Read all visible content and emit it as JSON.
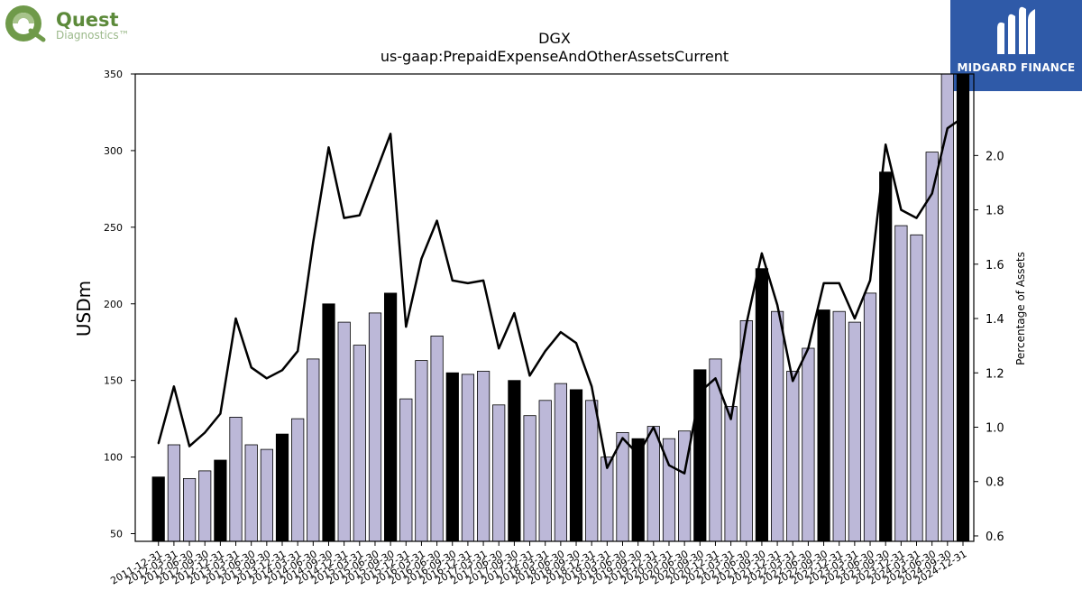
{
  "logos": {
    "left_line1": "Quest",
    "left_line2": "Diagnostics™",
    "right_brand": "MIDGARD FINANCE"
  },
  "chart_data": {
    "type": "bar",
    "title": "DGX",
    "subtitle": "us-gaap:PrepaidExpenseAndOtherAssetsCurrent",
    "ylabel": "USDm",
    "y2label": "Percentage of Assets",
    "ylim": [
      45,
      350
    ],
    "y2lim": [
      0.58,
      2.3
    ],
    "yticks": [
      50,
      100,
      150,
      200,
      250,
      300,
      350
    ],
    "y2ticks": [
      0.6,
      0.8,
      1.0,
      1.2,
      1.4,
      1.6,
      1.8,
      2.0
    ],
    "colors": {
      "annual_bar": "#000000",
      "quarter_bar": "#bcb8d8",
      "line": "#000000"
    },
    "categories": [
      "2011-12-31",
      "2012-03-31",
      "2012-06-30",
      "2012-09-30",
      "2012-12-31",
      "2013-03-31",
      "2013-06-30",
      "2013-09-30",
      "2013-12-31",
      "2014-03-31",
      "2014-06-30",
      "2014-09-30",
      "2014-12-31",
      "2015-03-31",
      "2015-06-30",
      "2015-09-30",
      "2015-12-31",
      "2016-03-31",
      "2016-06-30",
      "2016-09-30",
      "2016-12-31",
      "2017-03-31",
      "2017-06-30",
      "2017-09-30",
      "2017-12-31",
      "2018-03-31",
      "2018-06-30",
      "2018-09-30",
      "2018-12-31",
      "2019-03-31",
      "2019-06-30",
      "2019-09-30",
      "2019-12-31",
      "2020-03-31",
      "2020-06-30",
      "2020-09-30",
      "2020-12-31",
      "2021-03-31",
      "2021-06-30",
      "2021-09-30",
      "2021-12-31",
      "2022-03-31",
      "2022-06-30",
      "2022-09-30",
      "2022-12-31",
      "2023-03-31",
      "2023-06-30",
      "2023-09-30",
      "2023-12-31",
      "2024-03-31",
      "2024-06-30",
      "2024-09-30",
      "2024-12-31"
    ],
    "series": [
      {
        "kind": "bar",
        "values": [
          87,
          108,
          86,
          91,
          98,
          126,
          108,
          105,
          115,
          125,
          164,
          200,
          188,
          173,
          194,
          207,
          138,
          163,
          179,
          155,
          154,
          156,
          134,
          150,
          127,
          137,
          148,
          144,
          137,
          100,
          116,
          112,
          120,
          112,
          117,
          157,
          164,
          133,
          189,
          223,
          195,
          156,
          171,
          196,
          195,
          188,
          207,
          286,
          251,
          245,
          299,
          350,
          350
        ],
        "annual": [
          true,
          false,
          false,
          false,
          true,
          false,
          false,
          false,
          true,
          false,
          false,
          true,
          false,
          false,
          false,
          true,
          false,
          false,
          false,
          true,
          false,
          false,
          false,
          true,
          false,
          false,
          false,
          true,
          false,
          false,
          false,
          true,
          false,
          false,
          false,
          true,
          false,
          false,
          false,
          true,
          false,
          false,
          false,
          true,
          false,
          false,
          false,
          true,
          false,
          false,
          false,
          false,
          true
        ]
      },
      {
        "kind": "line",
        "axis": "right",
        "values": [
          0.94,
          1.15,
          0.93,
          0.98,
          1.05,
          1.4,
          1.22,
          1.18,
          1.21,
          1.28,
          1.68,
          2.03,
          1.77,
          1.78,
          1.93,
          2.08,
          1.37,
          1.62,
          1.76,
          1.54,
          1.53,
          1.54,
          1.29,
          1.42,
          1.19,
          1.28,
          1.35,
          1.31,
          1.15,
          0.85,
          0.96,
          0.9,
          1.0,
          0.86,
          0.83,
          1.13,
          1.18,
          1.03,
          1.38,
          1.64,
          1.45,
          1.17,
          1.29,
          1.53,
          1.53,
          1.4,
          1.54,
          2.04,
          1.8,
          1.77,
          1.86,
          2.1,
          2.14
        ]
      }
    ]
  }
}
